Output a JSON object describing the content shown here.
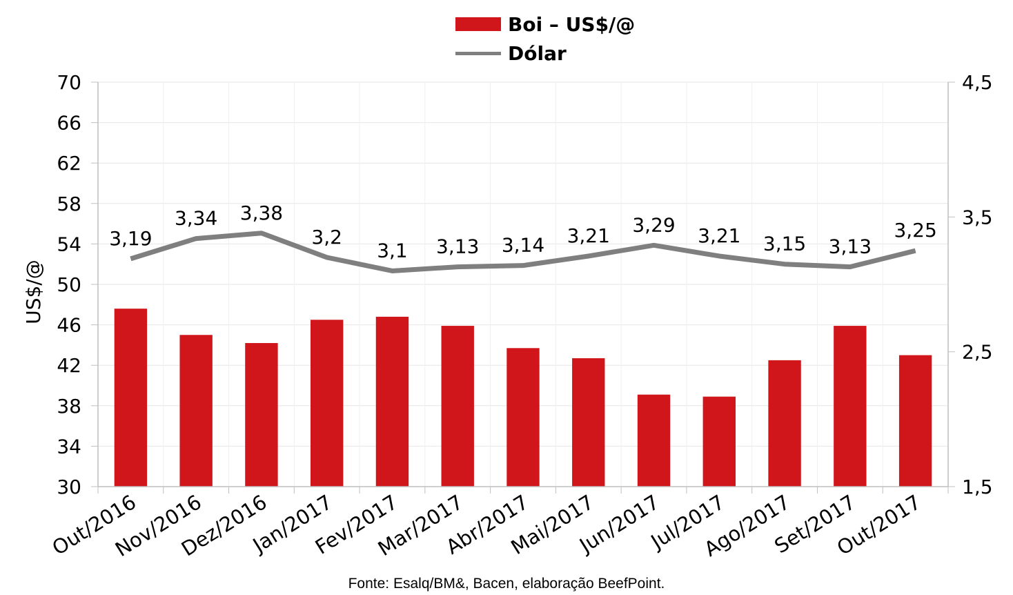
{
  "chart_data": {
    "type": "bar",
    "categories": [
      "Out/2016",
      "Nov/2016",
      "Dez/2016",
      "Jan/2017",
      "Fev/2017",
      "Mar/2017",
      "Abr/2017",
      "Mai/2017",
      "Jun/2017",
      "Jul/2017",
      "Ago/2017",
      "Set/2017",
      "Out/2017"
    ],
    "series": [
      {
        "name": "Boi – US$/@",
        "type": "bar",
        "axis": "left",
        "color": "#d0161b",
        "values": [
          47.6,
          45.0,
          44.2,
          46.5,
          46.8,
          45.9,
          43.7,
          42.7,
          39.1,
          38.9,
          42.5,
          45.9,
          43.0
        ]
      },
      {
        "name": "Dólar",
        "type": "line",
        "axis": "right",
        "color": "#7f7f7f",
        "values": [
          3.19,
          3.34,
          3.38,
          3.2,
          3.1,
          3.13,
          3.14,
          3.21,
          3.29,
          3.21,
          3.15,
          3.13,
          3.25
        ],
        "labels": [
          "3,19",
          "3,34",
          "3,38",
          "3,2",
          "3,1",
          "3,13",
          "3,14",
          "3,21",
          "3,29",
          "3,21",
          "3,15",
          "3,13",
          "3,25"
        ]
      }
    ],
    "ylabel": "US$/@",
    "ylim": [
      30,
      70
    ],
    "yticks": [
      "30",
      "34",
      "38",
      "42",
      "46",
      "50",
      "54",
      "58",
      "62",
      "66",
      "70"
    ],
    "y2lim": [
      1.5,
      4.5
    ],
    "y2ticks": [
      "1,5",
      "2,5",
      "3,5",
      "4,5"
    ],
    "legend_position": "top-center",
    "grid": true
  },
  "source_note": "Fonte: Esalq/BM&, Bacen, elaboração BeefPoint."
}
